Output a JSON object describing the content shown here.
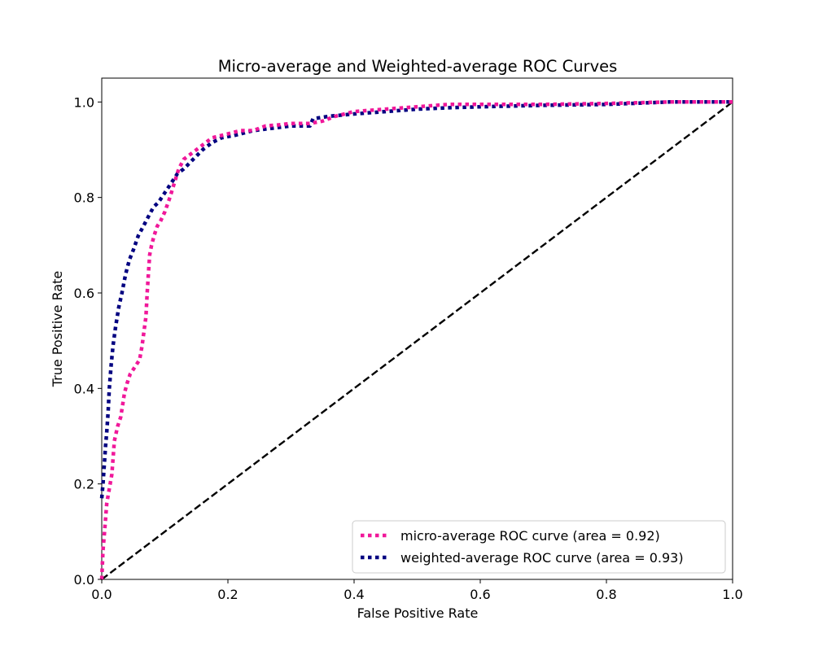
{
  "chart_data": {
    "type": "line",
    "title": "Micro-average and Weighted-average ROC Curves",
    "xlabel": "False Positive Rate",
    "ylabel": "True Positive Rate",
    "xlim": [
      0.0,
      1.0
    ],
    "ylim": [
      0.0,
      1.05
    ],
    "x_ticks": [
      "0.0",
      "0.2",
      "0.4",
      "0.6",
      "0.8",
      "1.0"
    ],
    "y_ticks": [
      "0.0",
      "0.2",
      "0.4",
      "0.6",
      "0.8",
      "1.0"
    ],
    "grid": false,
    "legend_position": "lower-right",
    "series": [
      {
        "name": "micro-average ROC curve (area = 0.92)",
        "color": "#f0189a",
        "style": "dotted",
        "x": [
          0.0,
          0.002,
          0.005,
          0.008,
          0.012,
          0.016,
          0.02,
          0.025,
          0.03,
          0.036,
          0.04,
          0.045,
          0.05,
          0.055,
          0.06,
          0.064,
          0.067,
          0.07,
          0.072,
          0.074,
          0.076,
          0.079,
          0.083,
          0.088,
          0.093,
          0.1,
          0.108,
          0.115,
          0.122,
          0.13,
          0.14,
          0.15,
          0.16,
          0.175,
          0.19,
          0.205,
          0.22,
          0.24,
          0.26,
          0.28,
          0.3,
          0.33,
          0.35,
          0.37,
          0.4,
          0.45,
          0.5,
          0.55,
          0.6,
          0.7,
          0.8,
          0.9,
          1.0
        ],
        "y": [
          0.0,
          0.06,
          0.11,
          0.16,
          0.19,
          0.22,
          0.29,
          0.32,
          0.34,
          0.39,
          0.41,
          0.43,
          0.44,
          0.45,
          0.46,
          0.49,
          0.52,
          0.55,
          0.6,
          0.64,
          0.68,
          0.7,
          0.72,
          0.74,
          0.75,
          0.77,
          0.8,
          0.83,
          0.86,
          0.88,
          0.89,
          0.9,
          0.91,
          0.925,
          0.93,
          0.935,
          0.94,
          0.94,
          0.95,
          0.952,
          0.955,
          0.955,
          0.96,
          0.97,
          0.98,
          0.985,
          0.99,
          0.995,
          0.995,
          0.995,
          0.997,
          1.0,
          1.0
        ]
      },
      {
        "name": "weighted-average ROC curve (area = 0.93)",
        "color": "#000080",
        "style": "dotted",
        "x": [
          0.0,
          0.002,
          0.004,
          0.006,
          0.008,
          0.01,
          0.012,
          0.015,
          0.018,
          0.022,
          0.027,
          0.032,
          0.038,
          0.044,
          0.05,
          0.058,
          0.066,
          0.074,
          0.082,
          0.09,
          0.1,
          0.11,
          0.12,
          0.13,
          0.145,
          0.16,
          0.175,
          0.19,
          0.21,
          0.24,
          0.27,
          0.3,
          0.33,
          0.335,
          0.36,
          0.4,
          0.45,
          0.5,
          0.55,
          0.6,
          0.7,
          0.8,
          0.9,
          1.0
        ],
        "y": [
          0.17,
          0.2,
          0.24,
          0.28,
          0.31,
          0.35,
          0.4,
          0.45,
          0.49,
          0.53,
          0.57,
          0.6,
          0.64,
          0.67,
          0.69,
          0.72,
          0.74,
          0.76,
          0.78,
          0.79,
          0.81,
          0.83,
          0.85,
          0.86,
          0.88,
          0.9,
          0.915,
          0.925,
          0.93,
          0.94,
          0.945,
          0.95,
          0.95,
          0.965,
          0.97,
          0.975,
          0.98,
          0.985,
          0.988,
          0.99,
          0.993,
          0.995,
          1.0,
          1.0
        ]
      },
      {
        "name": "",
        "color": "#000000",
        "style": "dashed",
        "x": [
          0.0,
          1.0
        ],
        "y": [
          0.0,
          1.0
        ]
      }
    ]
  }
}
